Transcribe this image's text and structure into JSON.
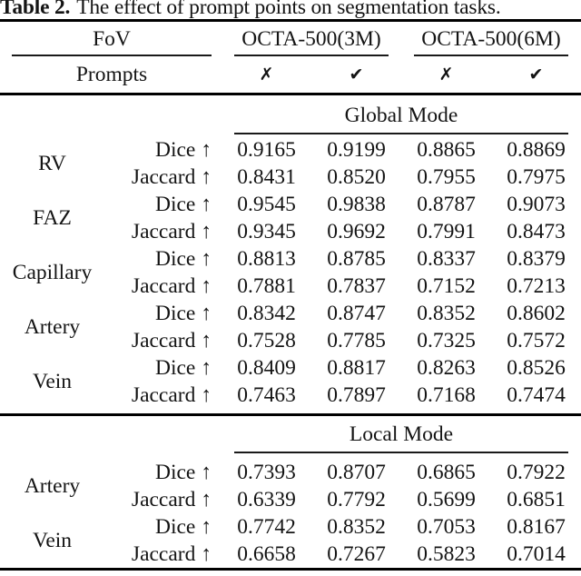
{
  "title": {
    "label": "Table 2.",
    "text": "The effect of prompt points on segmentation tasks."
  },
  "header": {
    "fov_label": "FoV",
    "prompts_label": "Prompts",
    "group_labels": [
      "OCTA-500(3M)",
      "OCTA-500(6M)"
    ],
    "prompt_marks": [
      "✗",
      "✔",
      "✗",
      "✔"
    ]
  },
  "sections": [
    {
      "mode": "Global Mode",
      "groups": [
        {
          "fov": "RV",
          "rows": [
            {
              "metric": "Dice ↑",
              "values": [
                "0.9165",
                "0.9199",
                "0.8865",
                "0.8869"
              ]
            },
            {
              "metric": "Jaccard ↑",
              "values": [
                "0.8431",
                "0.8520",
                "0.7955",
                "0.7975"
              ]
            }
          ]
        },
        {
          "fov": "FAZ",
          "rows": [
            {
              "metric": "Dice ↑",
              "values": [
                "0.9545",
                "0.9838",
                "0.8787",
                "0.9073"
              ]
            },
            {
              "metric": "Jaccard ↑",
              "values": [
                "0.9345",
                "0.9692",
                "0.7991",
                "0.8473"
              ]
            }
          ]
        },
        {
          "fov": "Capillary",
          "rows": [
            {
              "metric": "Dice ↑",
              "values": [
                "0.8813",
                "0.8785",
                "0.8337",
                "0.8379"
              ]
            },
            {
              "metric": "Jaccard ↑",
              "values": [
                "0.7881",
                "0.7837",
                "0.7152",
                "0.7213"
              ]
            }
          ]
        },
        {
          "fov": "Artery",
          "rows": [
            {
              "metric": "Dice ↑",
              "values": [
                "0.8342",
                "0.8747",
                "0.8352",
                "0.8602"
              ]
            },
            {
              "metric": "Jaccard ↑",
              "values": [
                "0.7528",
                "0.7785",
                "0.7325",
                "0.7572"
              ]
            }
          ]
        },
        {
          "fov": "Vein",
          "rows": [
            {
              "metric": "Dice ↑",
              "values": [
                "0.8409",
                "0.8817",
                "0.8263",
                "0.8526"
              ]
            },
            {
              "metric": "Jaccard ↑",
              "values": [
                "0.7463",
                "0.7897",
                "0.7168",
                "0.7474"
              ]
            }
          ]
        }
      ]
    },
    {
      "mode": "Local Mode",
      "groups": [
        {
          "fov": "Artery",
          "rows": [
            {
              "metric": "Dice ↑",
              "values": [
                "0.7393",
                "0.8707",
                "0.6865",
                "0.7922"
              ]
            },
            {
              "metric": "Jaccard ↑",
              "values": [
                "0.6339",
                "0.7792",
                "0.5699",
                "0.6851"
              ]
            }
          ]
        },
        {
          "fov": "Vein",
          "rows": [
            {
              "metric": "Dice ↑",
              "values": [
                "0.7742",
                "0.8352",
                "0.7053",
                "0.8167"
              ]
            },
            {
              "metric": "Jaccard ↑",
              "values": [
                "0.6658",
                "0.7267",
                "0.5823",
                "0.7014"
              ]
            }
          ]
        }
      ]
    }
  ],
  "colors": {
    "text": "#141414",
    "rule": "#000000",
    "background": "#ffffff"
  }
}
